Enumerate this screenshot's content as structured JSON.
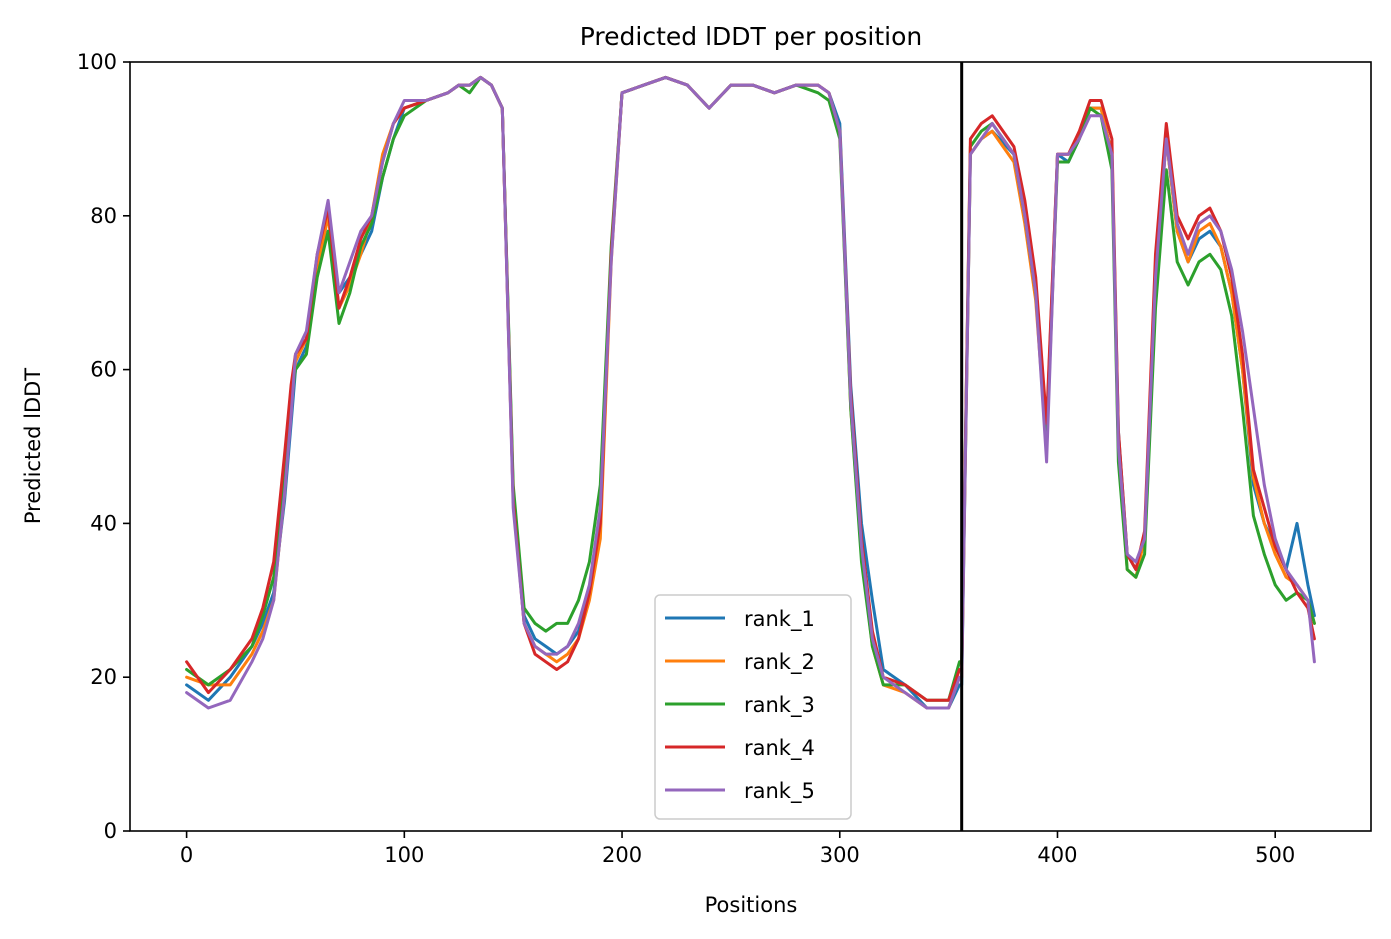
{
  "chart_data": {
    "type": "line",
    "title": "Predicted lDDT per position",
    "xlabel": "Positions",
    "ylabel": "Predicted lDDT",
    "xlim": [
      -26,
      544
    ],
    "ylim": [
      0,
      100
    ],
    "xticks": [
      0,
      100,
      200,
      300,
      400,
      500
    ],
    "yticks": [
      0,
      20,
      40,
      60,
      80,
      100
    ],
    "grid": false,
    "legend_position": "lower-center",
    "chain_break_x": 356,
    "x": [
      0,
      10,
      20,
      30,
      35,
      40,
      45,
      48,
      50,
      55,
      60,
      65,
      70,
      75,
      80,
      85,
      90,
      95,
      100,
      110,
      120,
      125,
      130,
      135,
      140,
      145,
      150,
      155,
      160,
      165,
      170,
      175,
      180,
      185,
      190,
      195,
      200,
      210,
      220,
      230,
      240,
      250,
      260,
      270,
      280,
      290,
      295,
      300,
      305,
      310,
      315,
      320,
      330,
      340,
      350,
      355,
      356,
      360,
      365,
      370,
      380,
      385,
      390,
      395,
      400,
      405,
      410,
      415,
      420,
      425,
      428,
      432,
      436,
      440,
      445,
      450,
      455,
      460,
      465,
      470,
      475,
      480,
      485,
      490,
      495,
      500,
      505,
      510,
      515,
      518
    ],
    "series": [
      {
        "name": "rank_1",
        "color": "#1f77b4",
        "values": [
          19,
          17,
          20,
          24,
          27,
          31,
          43,
          53,
          60,
          63,
          73,
          80,
          70,
          72,
          75,
          78,
          85,
          90,
          94,
          95,
          96,
          97,
          97,
          98,
          97,
          94,
          44,
          28,
          25,
          24,
          23,
          24,
          26,
          31,
          40,
          75,
          96,
          97,
          98,
          97,
          94,
          97,
          97,
          96,
          97,
          97,
          96,
          92,
          58,
          40,
          30,
          21,
          19,
          16,
          16,
          19,
          19,
          88,
          90,
          91,
          88,
          80,
          70,
          52,
          88,
          87,
          90,
          94,
          94,
          88,
          52,
          36,
          34,
          38,
          72,
          90,
          78,
          74,
          77,
          78,
          76,
          70,
          60,
          45,
          40,
          37,
          34,
          40,
          32,
          28
        ]
      },
      {
        "name": "rank_2",
        "color": "#ff7f0e",
        "values": [
          20,
          19,
          19,
          23,
          26,
          30,
          44,
          55,
          61,
          64,
          73,
          80,
          68,
          71,
          75,
          80,
          88,
          92,
          94,
          95,
          96,
          97,
          97,
          98,
          97,
          94,
          43,
          27,
          24,
          23,
          22,
          23,
          25,
          30,
          38,
          74,
          96,
          97,
          98,
          97,
          94,
          97,
          97,
          96,
          97,
          97,
          96,
          91,
          55,
          36,
          24,
          19,
          18,
          16,
          16,
          20,
          20,
          88,
          90,
          91,
          87,
          79,
          69,
          50,
          88,
          88,
          90,
          94,
          94,
          88,
          50,
          34,
          33,
          38,
          72,
          90,
          78,
          74,
          78,
          79,
          76,
          70,
          60,
          46,
          40,
          36,
          33,
          32,
          30,
          27
        ]
      },
      {
        "name": "rank_3",
        "color": "#2ca02c",
        "values": [
          21,
          19,
          21,
          24,
          28,
          33,
          46,
          56,
          60,
          62,
          72,
          78,
          66,
          70,
          76,
          79,
          85,
          90,
          93,
          95,
          96,
          97,
          96,
          98,
          97,
          94,
          45,
          29,
          27,
          26,
          27,
          27,
          30,
          35,
          45,
          76,
          96,
          97,
          98,
          97,
          94,
          97,
          97,
          96,
          97,
          96,
          95,
          90,
          55,
          35,
          24,
          19,
          19,
          17,
          17,
          22,
          22,
          89,
          91,
          92,
          88,
          80,
          70,
          50,
          87,
          87,
          90,
          94,
          93,
          86,
          48,
          34,
          33,
          36,
          68,
          86,
          74,
          71,
          74,
          75,
          73,
          67,
          55,
          41,
          36,
          32,
          30,
          31,
          30,
          27
        ]
      },
      {
        "name": "rank_4",
        "color": "#d62728",
        "values": [
          22,
          18,
          21,
          25,
          29,
          35,
          49,
          58,
          62,
          64,
          75,
          81,
          68,
          72,
          77,
          80,
          87,
          92,
          94,
          95,
          96,
          97,
          97,
          98,
          97,
          94,
          43,
          27,
          23,
          22,
          21,
          22,
          25,
          31,
          40,
          75,
          96,
          97,
          98,
          97,
          94,
          97,
          97,
          96,
          97,
          97,
          96,
          91,
          57,
          38,
          26,
          20,
          19,
          17,
          17,
          21,
          21,
          90,
          92,
          93,
          89,
          82,
          72,
          53,
          88,
          88,
          91,
          95,
          95,
          90,
          52,
          36,
          34,
          39,
          75,
          92,
          80,
          77,
          80,
          81,
          78,
          72,
          62,
          47,
          42,
          37,
          34,
          31,
          29,
          25
        ]
      },
      {
        "name": "rank_5",
        "color": "#9467bd",
        "values": [
          18,
          16,
          17,
          22,
          25,
          30,
          44,
          54,
          62,
          65,
          75,
          82,
          70,
          74,
          78,
          80,
          87,
          92,
          95,
          95,
          96,
          97,
          97,
          98,
          97,
          94,
          42,
          27,
          24,
          23,
          23,
          24,
          27,
          32,
          42,
          74,
          96,
          97,
          98,
          97,
          94,
          97,
          97,
          96,
          97,
          97,
          96,
          91,
          56,
          37,
          25,
          20,
          18,
          16,
          16,
          20,
          20,
          88,
          90,
          92,
          88,
          80,
          70,
          48,
          88,
          88,
          90,
          93,
          93,
          88,
          50,
          36,
          35,
          38,
          72,
          90,
          79,
          75,
          79,
          80,
          78,
          73,
          65,
          55,
          45,
          38,
          34,
          32,
          30,
          22
        ]
      }
    ]
  }
}
